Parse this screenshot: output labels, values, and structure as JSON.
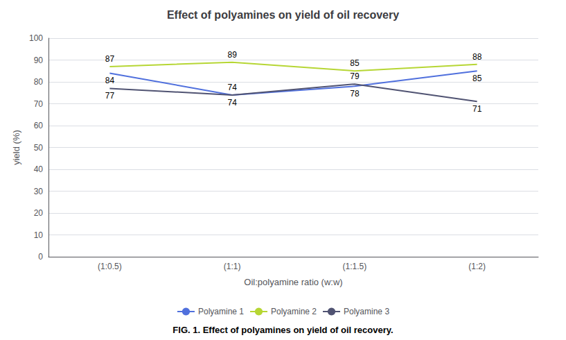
{
  "chart_data": {
    "type": "line",
    "title": "Effect of polyamines on yield of oil recovery",
    "xlabel": "Oil:polyamine ratio (w:w)",
    "ylabel": "yield (%)",
    "categories": [
      "(1:0.5)",
      "(1:1)",
      "(1:1.5)",
      "(1:2)"
    ],
    "series": [
      {
        "name": "Polyamine 1",
        "values": [
          84,
          74,
          78,
          85
        ]
      },
      {
        "name": "Polyamine 2",
        "values": [
          87,
          89,
          85,
          88
        ]
      },
      {
        "name": "Polyamine 3",
        "values": [
          77,
          74,
          79,
          71
        ]
      }
    ],
    "ylim": [
      0,
      100
    ],
    "yticks": [
      0,
      10,
      20,
      30,
      40,
      50,
      60,
      70,
      80,
      90,
      100
    ],
    "grid": true,
    "legend": "bottom",
    "data_labels": true,
    "annotations": [
      "FIG. 1. Effect of polyamines on yield of oil recovery."
    ]
  }
}
